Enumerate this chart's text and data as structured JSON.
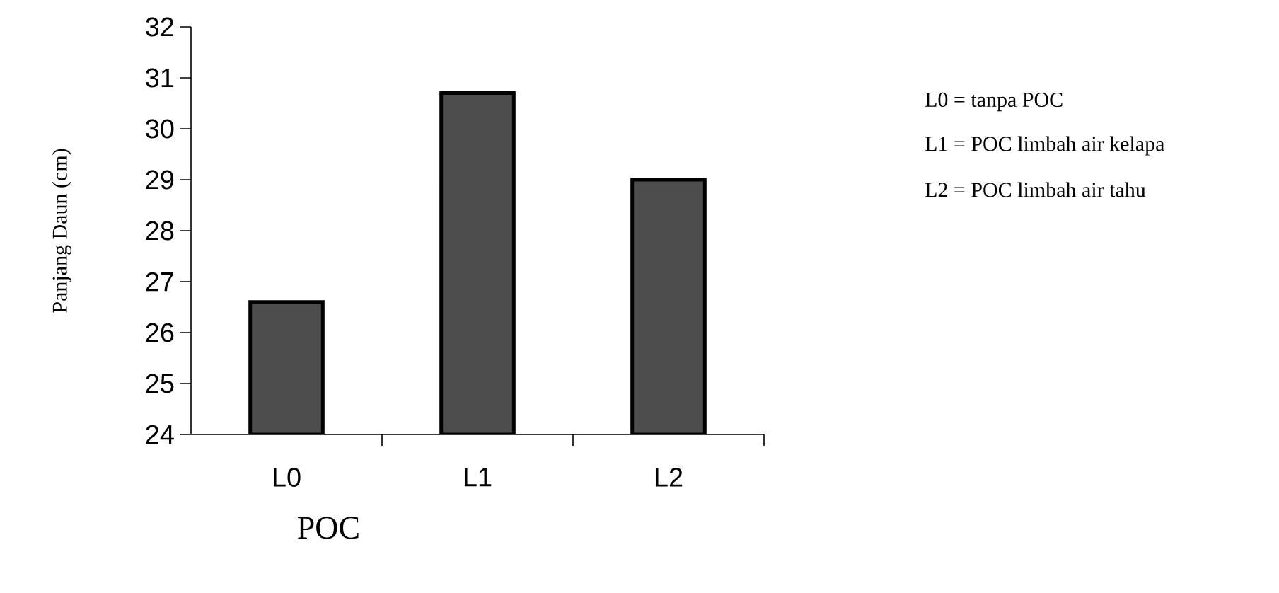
{
  "chart_data": {
    "type": "bar",
    "categories": [
      "L0",
      "L1",
      "L2"
    ],
    "values": [
      26.6,
      30.7,
      29.0
    ],
    "color": "#4d4d4d",
    "ylim": [
      24,
      32
    ],
    "yticks": [
      24,
      25,
      26,
      27,
      28,
      29,
      30,
      31,
      32
    ],
    "xlabel": "POC",
    "ylabel": "Panjang Daun (cm)",
    "grid": false,
    "annotations": [
      "L0 = tanpa POC",
      "L1 = POC limbah air kelapa",
      "L2 = POC limbah air tahu"
    ]
  }
}
